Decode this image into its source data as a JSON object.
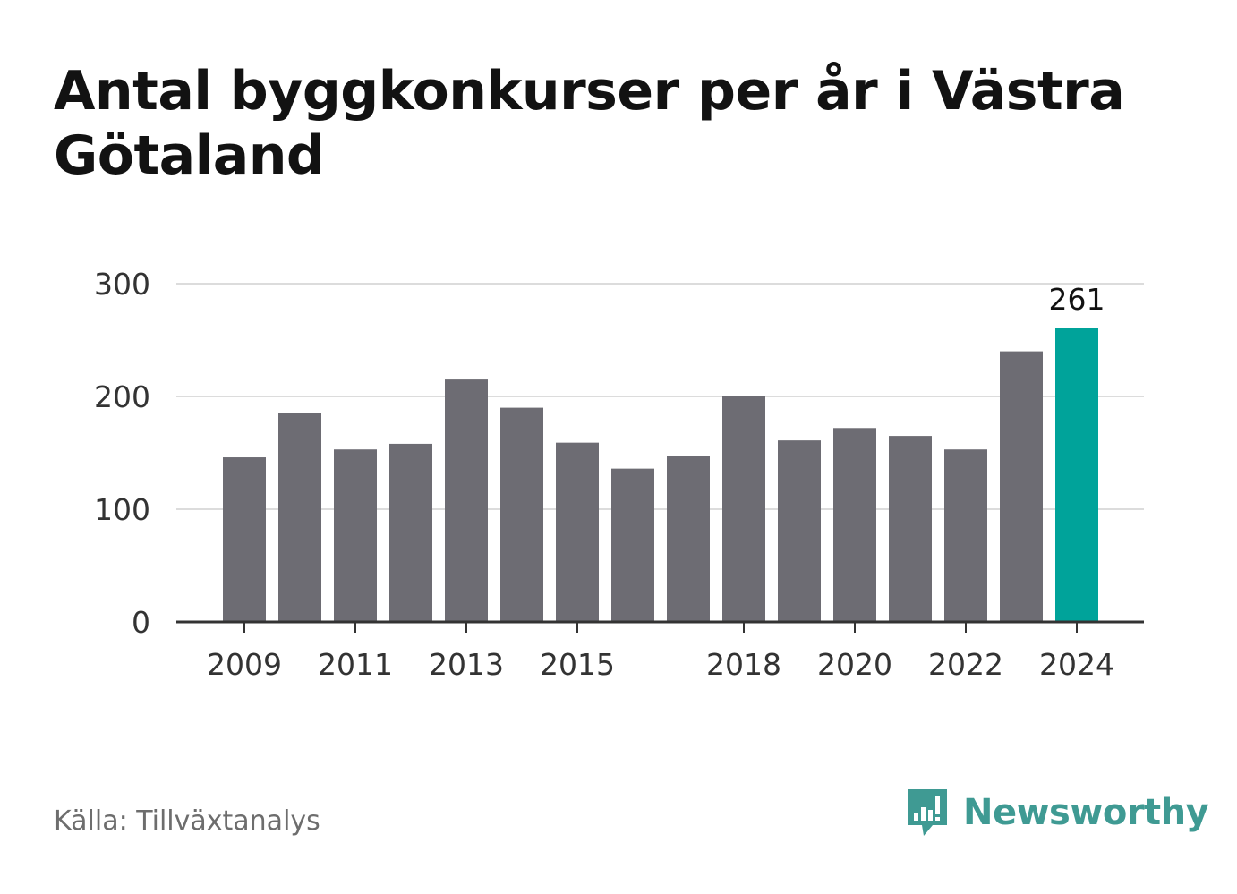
{
  "title": "Antal byggkonkurser per år i Västra Götaland",
  "source": "Källa: Tillväxtanalys",
  "brand": {
    "name": "Newsworthy",
    "color": "#3f9a93"
  },
  "colors": {
    "bar": "#6d6c73",
    "highlight": "#00a39a",
    "grid": "#dcdcdc",
    "axis": "#333333"
  },
  "chart_data": {
    "type": "bar",
    "categories": [
      "2009",
      "2010",
      "2011",
      "2012",
      "2013",
      "2014",
      "2015",
      "2016",
      "2017",
      "2018",
      "2019",
      "2020",
      "2021",
      "2022",
      "2023",
      "2024"
    ],
    "values": [
      146,
      185,
      153,
      158,
      215,
      190,
      159,
      136,
      147,
      200,
      161,
      172,
      165,
      153,
      240,
      261
    ],
    "xtick_labels": [
      "2009",
      "",
      "2011",
      "",
      "2013",
      "",
      "2015",
      "",
      "",
      "2018",
      "",
      "2020",
      "",
      "2022",
      "",
      "2024"
    ],
    "highlight_index": 15,
    "highlight_label": "261",
    "yticks": [
      0,
      100,
      200,
      300
    ],
    "ylim": [
      0,
      300
    ],
    "grid": true,
    "xlabel": "",
    "ylabel": ""
  }
}
